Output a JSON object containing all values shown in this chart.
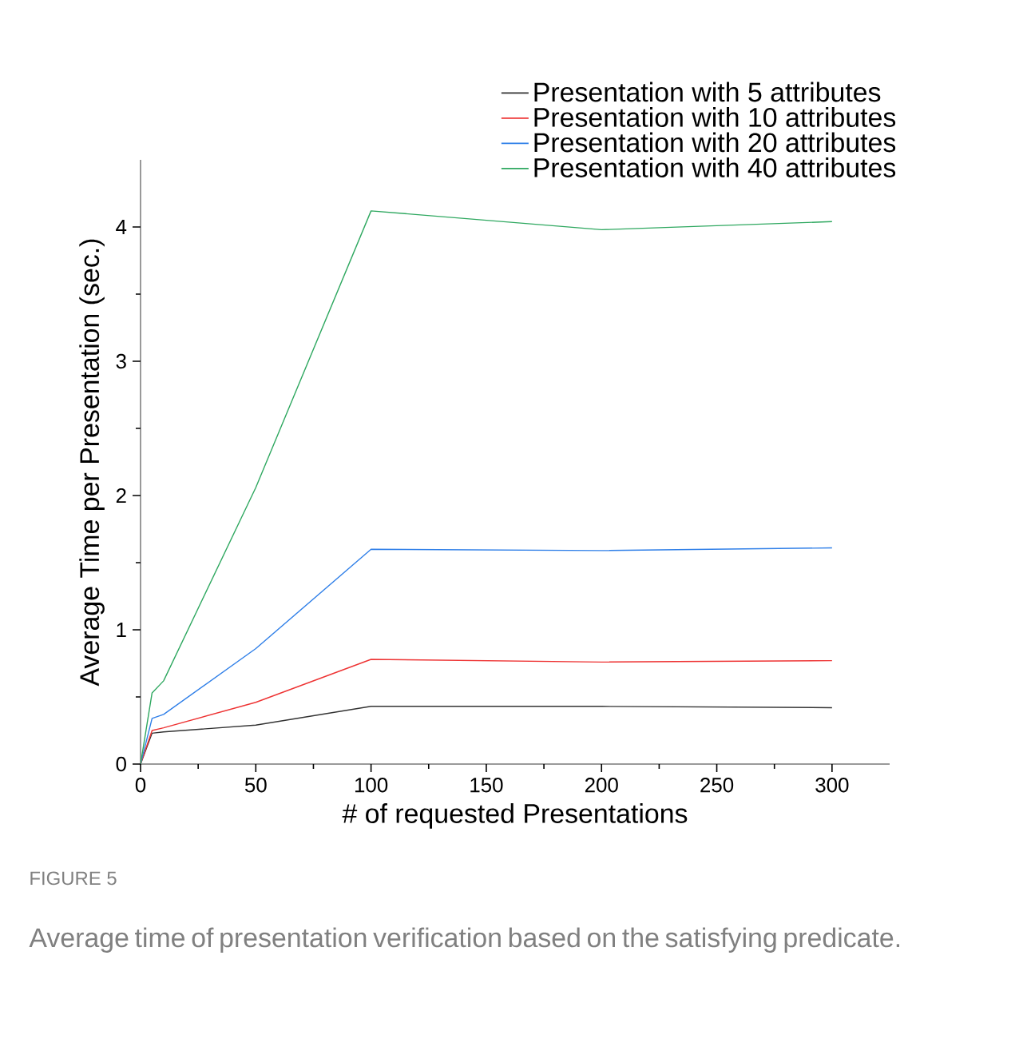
{
  "chart_data": {
    "type": "line",
    "xlabel": "# of requested Presentations",
    "ylabel": "Average Time per Presentation (sec.)",
    "x": [
      0,
      5,
      10,
      50,
      100,
      200,
      300
    ],
    "series": [
      {
        "name": "Presentation with 5 attributes",
        "color": "#333333",
        "values": [
          0,
          0.23,
          0.24,
          0.29,
          0.43,
          0.43,
          0.42
        ]
      },
      {
        "name": "Presentation with 10 attributes",
        "color": "#ee3333",
        "values": [
          0,
          0.25,
          0.27,
          0.46,
          0.78,
          0.76,
          0.77
        ]
      },
      {
        "name": "Presentation with 20 attributes",
        "color": "#2f7fe8",
        "values": [
          0,
          0.34,
          0.37,
          0.86,
          1.6,
          1.59,
          1.61
        ]
      },
      {
        "name": "Presentation with 40 attributes",
        "color": "#2fa860",
        "values": [
          0,
          0.53,
          0.62,
          2.06,
          4.12,
          3.98,
          4.04
        ]
      }
    ],
    "xlim": [
      0,
      325
    ],
    "ylim": [
      0,
      4.5
    ],
    "xticks": [
      0,
      50,
      100,
      150,
      200,
      250,
      300
    ],
    "yticks": [
      0,
      1,
      2,
      3,
      4
    ],
    "legend": "top right",
    "grid": false,
    "marker": "none",
    "line_style": "solid",
    "annotations": [
      "FIGURE 5",
      "Average time of presentation verification based on the satisfying predicate."
    ]
  }
}
